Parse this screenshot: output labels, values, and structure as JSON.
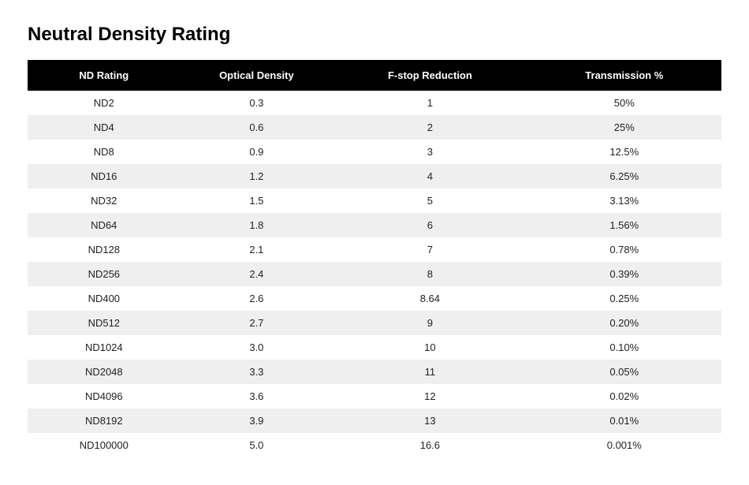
{
  "title": "Neutral Density Rating",
  "table": {
    "type": "table",
    "columns": [
      "ND Rating",
      "Optical Density",
      "F-stop Reduction",
      "Transmission %"
    ],
    "column_widths": [
      "22%",
      "22%",
      "28%",
      "28%"
    ],
    "header_bg": "#000000",
    "header_text_color": "#ffffff",
    "header_fontsize": 13,
    "header_fontweight": 700,
    "row_bg_odd": "#ffffff",
    "row_bg_even": "#efefef",
    "cell_text_color": "#222222",
    "cell_fontsize": 13,
    "rows": [
      [
        "ND2",
        "0.3",
        "1",
        "50%"
      ],
      [
        "ND4",
        "0.6",
        "2",
        "25%"
      ],
      [
        "ND8",
        "0.9",
        "3",
        "12.5%"
      ],
      [
        "ND16",
        "1.2",
        "4",
        "6.25%"
      ],
      [
        "ND32",
        "1.5",
        "5",
        "3.13%"
      ],
      [
        "ND64",
        "1.8",
        "6",
        "1.56%"
      ],
      [
        "ND128",
        "2.1",
        "7",
        "0.78%"
      ],
      [
        "ND256",
        "2.4",
        "8",
        "0.39%"
      ],
      [
        "ND400",
        "2.6",
        "8.64",
        "0.25%"
      ],
      [
        "ND512",
        "2.7",
        "9",
        "0.20%"
      ],
      [
        "ND1024",
        "3.0",
        "10",
        "0.10%"
      ],
      [
        "ND2048",
        "3.3",
        "11",
        "0.05%"
      ],
      [
        "ND4096",
        "3.6",
        "12",
        "0.02%"
      ],
      [
        "ND8192",
        "3.9",
        "13",
        "0.01%"
      ],
      [
        "ND100000",
        "5.0",
        "16.6",
        "0.001%"
      ]
    ]
  },
  "title_fontsize": 24,
  "title_color": "#000000",
  "page_bg": "#ffffff"
}
